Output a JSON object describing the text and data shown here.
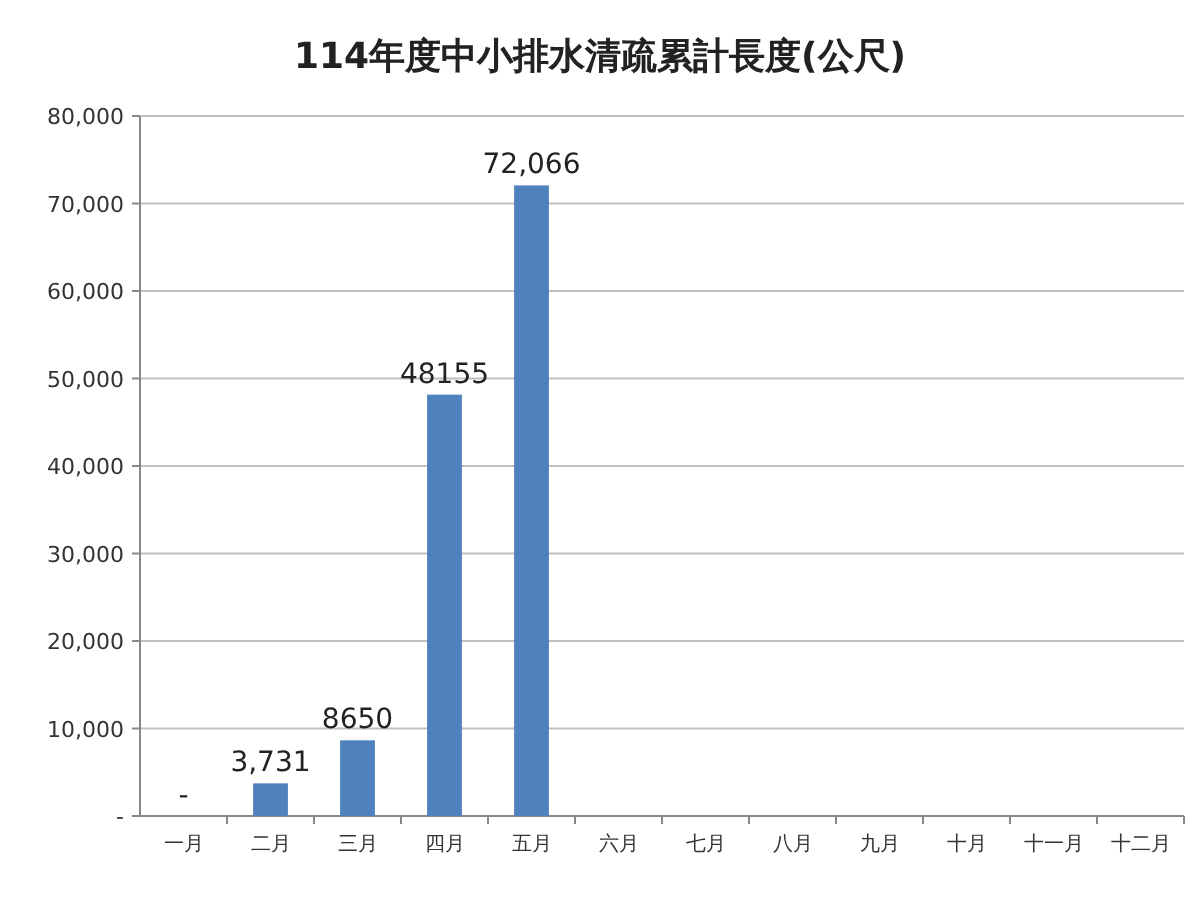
{
  "chart_data": {
    "type": "bar",
    "title": "114年度中小排水清疏累計長度(公尺)",
    "categories": [
      "一月",
      "二月",
      "三月",
      "四月",
      "五月",
      "六月",
      "七月",
      "八月",
      "九月",
      "十月",
      "十一月",
      "十二月"
    ],
    "values": [
      0,
      3731,
      8650,
      48155,
      72066,
      null,
      null,
      null,
      null,
      null,
      null,
      null
    ],
    "value_labels": [
      "-",
      "3,731",
      "8650",
      "48155",
      "72,066",
      null,
      null,
      null,
      null,
      null,
      null,
      null
    ],
    "color": "#4f81bd",
    "ylim": [
      0,
      80000
    ],
    "yticks": [
      {
        "value": 0,
        "label": "-"
      },
      {
        "value": 10000,
        "label": "10,000"
      },
      {
        "value": 20000,
        "label": "20,000"
      },
      {
        "value": 30000,
        "label": "30,000"
      },
      {
        "value": 40000,
        "label": "40,000"
      },
      {
        "value": 50000,
        "label": "50,000"
      },
      {
        "value": 60000,
        "label": "60,000"
      },
      {
        "value": 70000,
        "label": "70,000"
      },
      {
        "value": 80000,
        "label": "80,000"
      }
    ],
    "grid": "y"
  }
}
